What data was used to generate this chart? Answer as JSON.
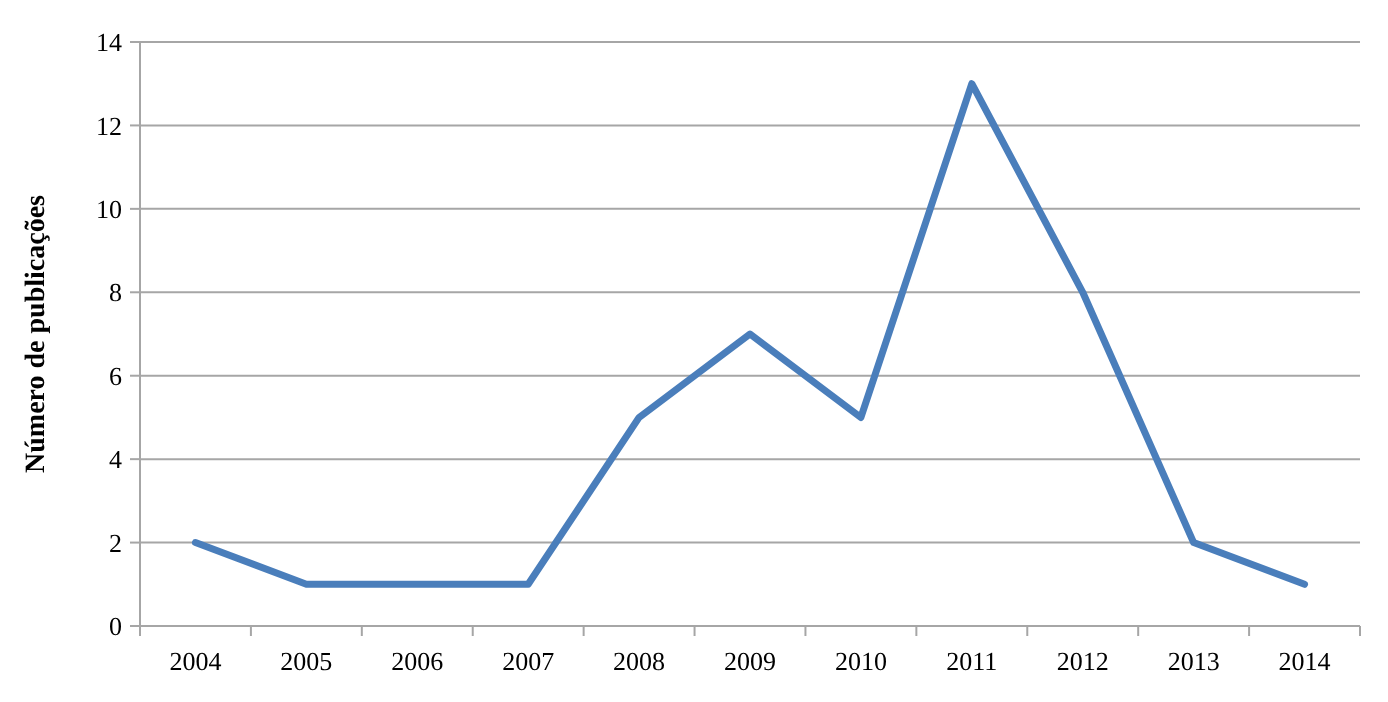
{
  "chart_data": {
    "type": "line",
    "ylabel": "Número de publicações",
    "categories": [
      "2004",
      "2005",
      "2006",
      "2007",
      "2008",
      "2009",
      "2010",
      "2011",
      "2012",
      "2013",
      "2014"
    ],
    "series": [
      {
        "color": "#4a7ebb",
        "values": [
          2,
          1,
          1,
          1,
          5,
          7,
          5,
          13,
          8,
          2,
          1
        ]
      }
    ],
    "ylim": [
      0,
      14
    ],
    "yticks": [
      0,
      2,
      4,
      6,
      8,
      10,
      12,
      14
    ],
    "grid": "y",
    "marker": "none",
    "line_style": "solid"
  }
}
